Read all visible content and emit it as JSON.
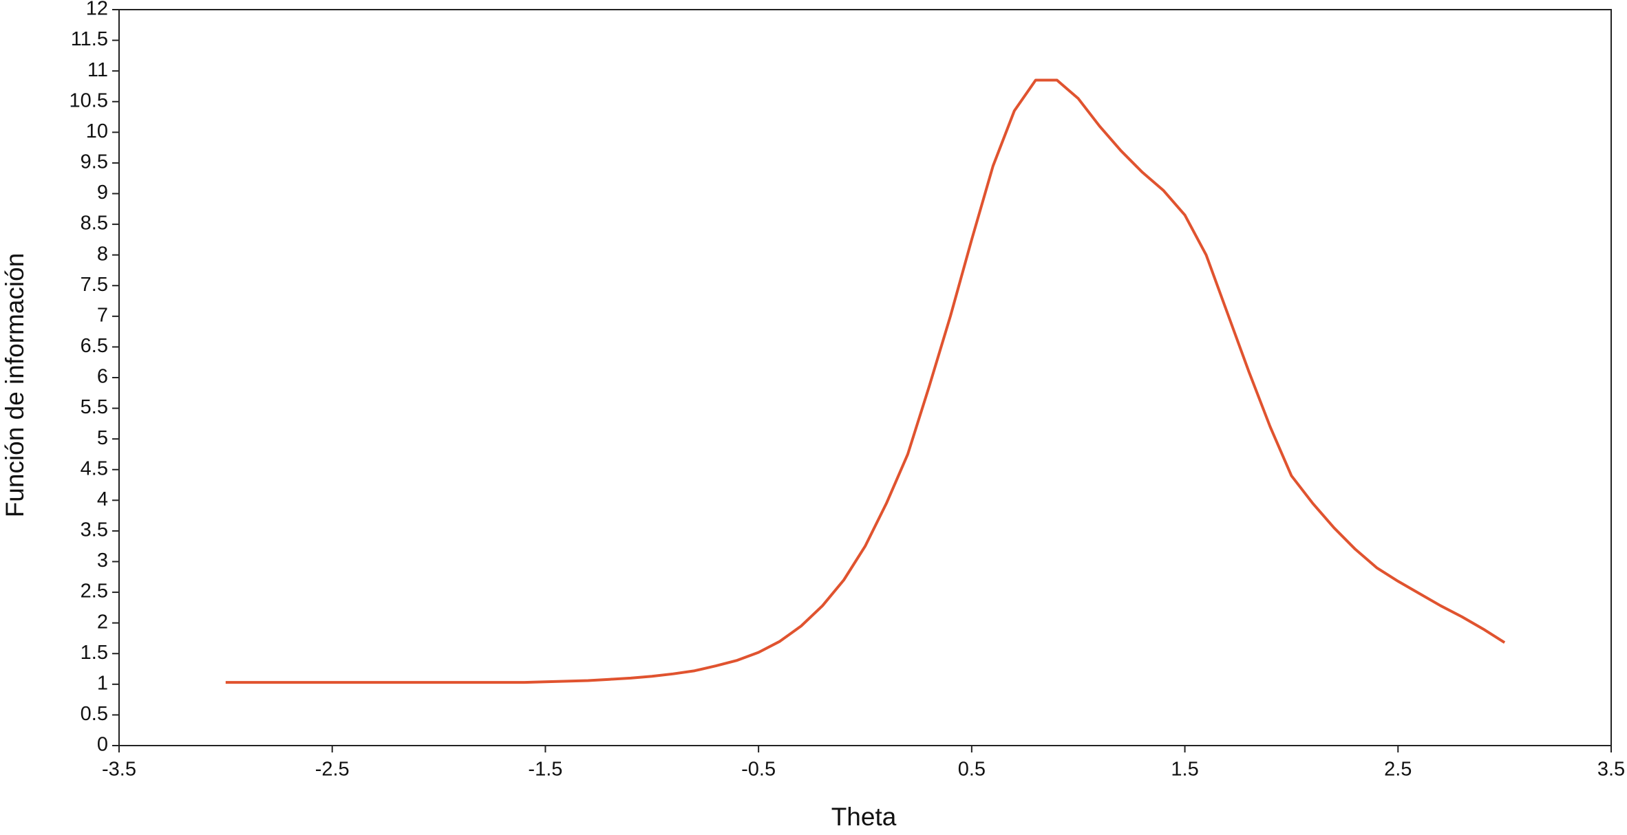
{
  "chart_data": {
    "type": "line",
    "x_label": "Theta",
    "y_label": "Función de información",
    "x": [
      -3.0,
      -2.9,
      -2.8,
      -2.7,
      -2.6,
      -2.5,
      -2.4,
      -2.3,
      -2.2,
      -2.1,
      -2.0,
      -1.9,
      -1.8,
      -1.7,
      -1.6,
      -1.5,
      -1.4,
      -1.3,
      -1.2,
      -1.1,
      -1.0,
      -0.9,
      -0.8,
      -0.7,
      -0.6,
      -0.5,
      -0.4,
      -0.3,
      -0.2,
      -0.1,
      0.0,
      0.1,
      0.2,
      0.3,
      0.4,
      0.5,
      0.6,
      0.7,
      0.8,
      0.9,
      1.0,
      1.1,
      1.2,
      1.3,
      1.4,
      1.5,
      1.6,
      1.7,
      1.8,
      1.9,
      2.0,
      2.1,
      2.2,
      2.3,
      2.4,
      2.5,
      2.6,
      2.7,
      2.8,
      2.9,
      3.0
    ],
    "values": [
      1.03,
      1.03,
      1.03,
      1.03,
      1.03,
      1.03,
      1.03,
      1.03,
      1.03,
      1.03,
      1.03,
      1.03,
      1.03,
      1.03,
      1.03,
      1.04,
      1.05,
      1.06,
      1.08,
      1.1,
      1.13,
      1.17,
      1.22,
      1.3,
      1.39,
      1.52,
      1.7,
      1.95,
      2.28,
      2.7,
      3.25,
      3.95,
      4.75,
      5.85,
      7.0,
      8.25,
      9.45,
      10.35,
      10.85,
      10.85,
      10.55,
      10.1,
      9.7,
      9.35,
      9.05,
      8.65,
      8.0,
      7.05,
      6.1,
      5.2,
      4.4,
      3.95,
      3.55,
      3.2,
      2.9,
      2.68,
      2.48,
      2.28,
      2.1,
      1.9,
      1.68
    ],
    "color": "#e0532f",
    "xlim": [
      -3.5,
      3.5
    ],
    "xticks": [
      -3.5,
      -2.5,
      -1.5,
      -0.5,
      0.5,
      1.5,
      2.5,
      3.5
    ],
    "ylim": [
      0,
      12
    ],
    "yticks": [
      0,
      0.5,
      1,
      1.5,
      2,
      2.5,
      3,
      3.5,
      4,
      4.5,
      5,
      5.5,
      6,
      6.5,
      7,
      7.5,
      8,
      8.5,
      9,
      9.5,
      10,
      10.5,
      11,
      11.5,
      12
    ]
  }
}
